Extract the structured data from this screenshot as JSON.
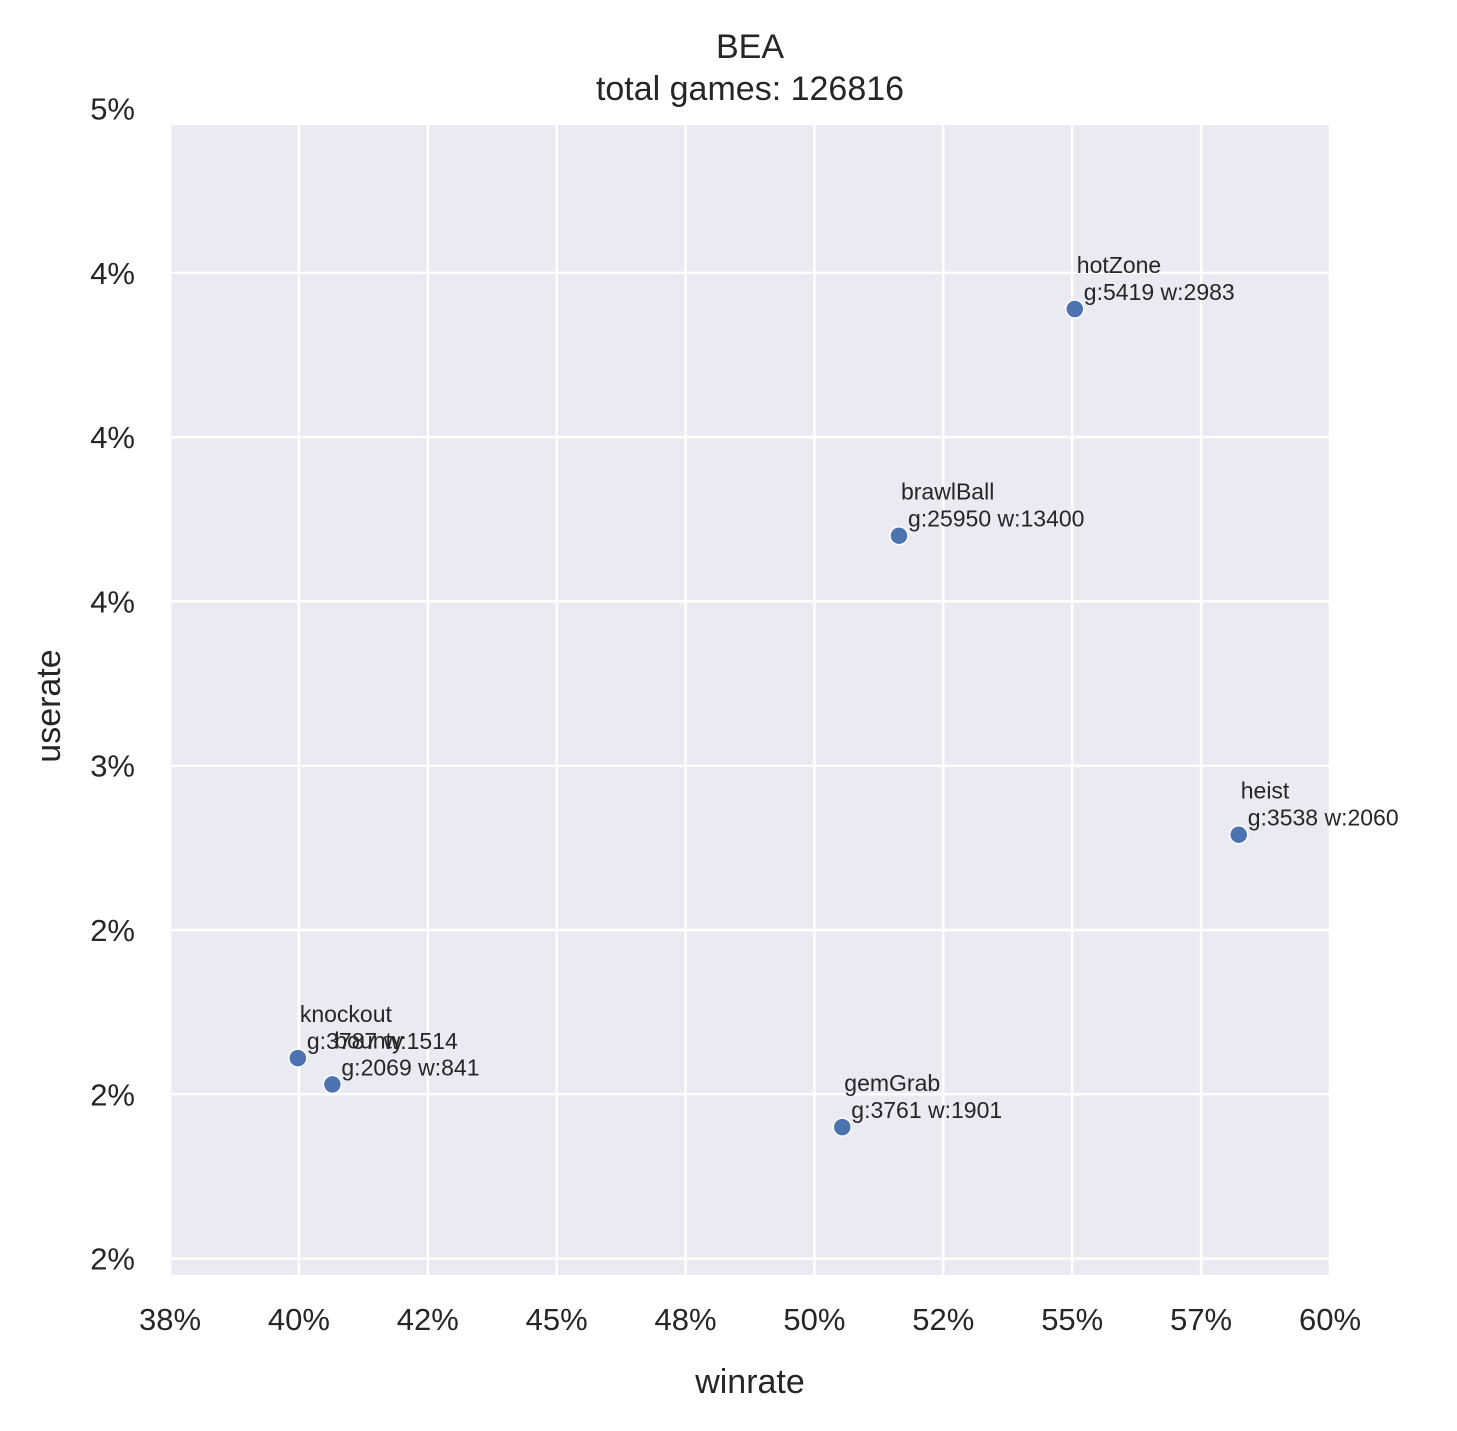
{
  "chart_data": {
    "type": "scatter",
    "title": "BEA",
    "subtitle": "total games: 126816",
    "xlabel": "winrate",
    "ylabel": "userate",
    "xlim": [
      0.375,
      0.6
    ],
    "ylim": [
      0.0145,
      0.0495
    ],
    "x_ticks": [
      {
        "value": 0.375,
        "label": "38%"
      },
      {
        "value": 0.4,
        "label": "40%"
      },
      {
        "value": 0.425,
        "label": "42%"
      },
      {
        "value": 0.45,
        "label": "45%"
      },
      {
        "value": 0.475,
        "label": "48%"
      },
      {
        "value": 0.5,
        "label": "50%"
      },
      {
        "value": 0.525,
        "label": "52%"
      },
      {
        "value": 0.55,
        "label": "55%"
      },
      {
        "value": 0.575,
        "label": "57%"
      },
      {
        "value": 0.6,
        "label": "60%"
      }
    ],
    "y_ticks": [
      {
        "value": 0.015,
        "label": "2%"
      },
      {
        "value": 0.02,
        "label": "2%"
      },
      {
        "value": 0.025,
        "label": "2%"
      },
      {
        "value": 0.03,
        "label": "3%"
      },
      {
        "value": 0.035,
        "label": "4%"
      },
      {
        "value": 0.04,
        "label": "4%"
      },
      {
        "value": 0.045,
        "label": "4%"
      },
      {
        "value": 0.05,
        "label": "5%"
      }
    ],
    "grid": true,
    "marker_color": "#4c72b0",
    "background_color": "#eaeaf2",
    "grid_color": "#ffffff",
    "points": [
      {
        "name": "hotZone",
        "x": 0.5505,
        "y": 0.0439,
        "games": "g:5419 w:2983"
      },
      {
        "name": "brawlBall",
        "x": 0.5164,
        "y": 0.037,
        "games": "g:25950 w:13400"
      },
      {
        "name": "heist",
        "x": 0.5823,
        "y": 0.0279,
        "games": "g:3538 w:2060"
      },
      {
        "name": "knockout",
        "x": 0.3998,
        "y": 0.0211,
        "games": "g:3787 w:1514"
      },
      {
        "name": "bounty",
        "x": 0.4065,
        "y": 0.0203,
        "games": "g:2069 w:841"
      },
      {
        "name": "gemGrab",
        "x": 0.5054,
        "y": 0.019,
        "games": "g:3761 w:1901"
      }
    ]
  }
}
